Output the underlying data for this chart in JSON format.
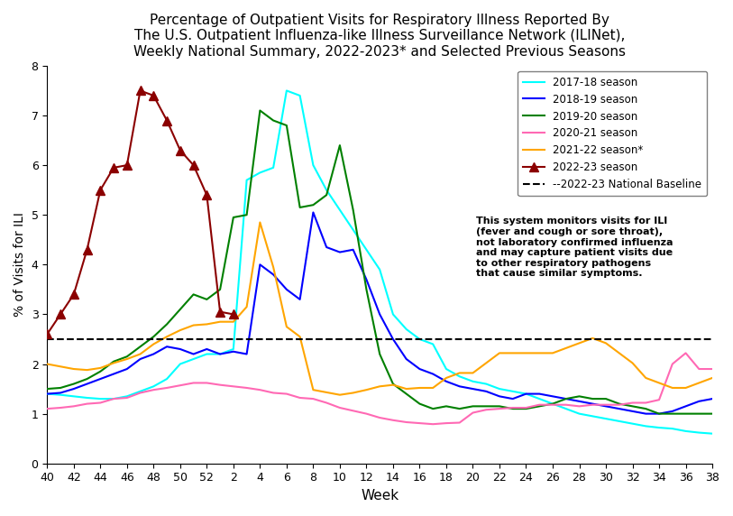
{
  "title": "Percentage of Outpatient Visits for Respiratory Illness Reported By\nThe U.S. Outpatient Influenza-like Illness Surveillance Network (ILINet),\nWeekly National Summary, 2022-2023* and Selected Previous Seasons",
  "xlabel": "Week",
  "ylabel": "% of Visits for ILI",
  "ylim": [
    0,
    8
  ],
  "yticks": [
    0,
    1,
    2,
    3,
    4,
    5,
    6,
    7,
    8
  ],
  "baseline": 2.5,
  "annotation_text": "This system monitors visits for ILI\n(fever and cough or sore throat),\nnot laboratory confirmed influenza\nand may capture patient visits due\nto other respiratory pathogens\nthat cause similar symptoms.",
  "x_tick_labels": [
    "40",
    "42",
    "44",
    "46",
    "48",
    "50",
    "52",
    "2",
    "4",
    "6",
    "8",
    "10",
    "12",
    "14",
    "16",
    "18",
    "20",
    "22",
    "24",
    "26",
    "28",
    "30",
    "32",
    "34",
    "36",
    "38"
  ],
  "seasons": {
    "2017-18 season": {
      "color": "cyan",
      "lw": 1.5,
      "marker": null,
      "linestyle": "solid",
      "x": [
        40,
        41,
        42,
        43,
        44,
        45,
        46,
        47,
        48,
        49,
        50,
        51,
        52,
        1,
        2,
        3,
        4,
        5,
        6,
        7,
        8,
        9,
        10,
        11,
        12,
        13,
        14,
        15,
        16,
        17,
        18,
        19,
        20,
        21,
        22,
        23,
        24,
        25,
        26,
        27,
        28,
        29,
        30,
        31,
        32,
        33,
        34,
        35,
        36,
        37,
        38
      ],
      "y": [
        1.4,
        1.38,
        1.35,
        1.32,
        1.3,
        1.3,
        1.35,
        1.45,
        1.55,
        1.7,
        2.0,
        2.1,
        2.2,
        2.2,
        2.3,
        5.7,
        5.85,
        5.95,
        7.5,
        7.4,
        6.0,
        5.5,
        5.1,
        4.7,
        4.3,
        3.9,
        3.0,
        2.7,
        2.5,
        2.4,
        1.9,
        1.75,
        1.65,
        1.6,
        1.5,
        1.45,
        1.4,
        1.3,
        1.2,
        1.1,
        1.0,
        0.95,
        0.9,
        0.85,
        0.8,
        0.75,
        0.72,
        0.7,
        0.65,
        0.62,
        0.6
      ]
    },
    "2018-19 season": {
      "color": "blue",
      "lw": 1.5,
      "marker": null,
      "linestyle": "solid",
      "x": [
        40,
        41,
        42,
        43,
        44,
        45,
        46,
        47,
        48,
        49,
        50,
        51,
        52,
        1,
        2,
        3,
        4,
        5,
        6,
        7,
        8,
        9,
        10,
        11,
        12,
        13,
        14,
        15,
        16,
        17,
        18,
        19,
        20,
        21,
        22,
        23,
        24,
        25,
        26,
        27,
        28,
        29,
        30,
        31,
        32,
        33,
        34,
        35,
        36,
        37,
        38
      ],
      "y": [
        1.4,
        1.42,
        1.5,
        1.6,
        1.7,
        1.8,
        1.9,
        2.1,
        2.2,
        2.35,
        2.3,
        2.2,
        2.3,
        2.2,
        2.25,
        2.2,
        4.0,
        3.8,
        3.5,
        3.3,
        5.05,
        4.35,
        4.25,
        4.3,
        3.7,
        3.0,
        2.5,
        2.1,
        1.9,
        1.8,
        1.65,
        1.55,
        1.5,
        1.45,
        1.35,
        1.3,
        1.4,
        1.4,
        1.35,
        1.3,
        1.25,
        1.2,
        1.15,
        1.1,
        1.05,
        1.0,
        1.0,
        1.05,
        1.15,
        1.25,
        1.3
      ]
    },
    "2019-20 season": {
      "color": "green",
      "lw": 1.5,
      "marker": null,
      "linestyle": "solid",
      "x": [
        40,
        41,
        42,
        43,
        44,
        45,
        46,
        47,
        48,
        49,
        50,
        51,
        52,
        1,
        2,
        3,
        4,
        5,
        6,
        7,
        8,
        9,
        10,
        11,
        12,
        13,
        14,
        15,
        16,
        17,
        18,
        19,
        20,
        21,
        22,
        23,
        24,
        25,
        26,
        27,
        28,
        29,
        30,
        31,
        32,
        33,
        34,
        35,
        36,
        37,
        38
      ],
      "y": [
        1.5,
        1.52,
        1.6,
        1.7,
        1.85,
        2.05,
        2.15,
        2.35,
        2.55,
        2.8,
        3.1,
        3.4,
        3.3,
        3.5,
        4.95,
        5.0,
        7.1,
        6.9,
        6.8,
        5.15,
        5.2,
        5.4,
        6.4,
        5.1,
        3.5,
        2.2,
        1.6,
        1.4,
        1.2,
        1.1,
        1.15,
        1.1,
        1.15,
        1.15,
        1.15,
        1.1,
        1.1,
        1.15,
        1.2,
        1.3,
        1.35,
        1.3,
        1.3,
        1.2,
        1.15,
        1.1,
        1.0,
        1.0,
        1.0,
        1.0,
        1.0
      ]
    },
    "2020-21 season": {
      "color": "#FF69B4",
      "lw": 1.5,
      "marker": null,
      "linestyle": "solid",
      "x": [
        40,
        41,
        42,
        43,
        44,
        45,
        46,
        47,
        48,
        49,
        50,
        51,
        52,
        1,
        2,
        3,
        4,
        5,
        6,
        7,
        8,
        9,
        10,
        11,
        12,
        13,
        14,
        15,
        16,
        17,
        18,
        19,
        20,
        21,
        22,
        23,
        24,
        25,
        26,
        27,
        28,
        29,
        30,
        31,
        32,
        33,
        34,
        35,
        36,
        37,
        38
      ],
      "y": [
        1.1,
        1.12,
        1.15,
        1.2,
        1.22,
        1.3,
        1.32,
        1.42,
        1.48,
        1.52,
        1.57,
        1.62,
        1.62,
        1.58,
        1.55,
        1.52,
        1.48,
        1.42,
        1.4,
        1.32,
        1.3,
        1.22,
        1.12,
        1.06,
        1.0,
        0.92,
        0.87,
        0.83,
        0.81,
        0.79,
        0.81,
        0.82,
        1.02,
        1.08,
        1.1,
        1.12,
        1.12,
        1.18,
        1.18,
        1.18,
        1.15,
        1.18,
        1.18,
        1.18,
        1.22,
        1.22,
        1.28,
        2.0,
        2.22,
        1.9,
        1.9
      ]
    },
    "2021-22 season*": {
      "color": "orange",
      "lw": 1.5,
      "marker": null,
      "linestyle": "solid",
      "x": [
        40,
        41,
        42,
        43,
        44,
        45,
        46,
        47,
        48,
        49,
        50,
        51,
        52,
        1,
        2,
        3,
        4,
        5,
        6,
        7,
        8,
        9,
        10,
        11,
        12,
        13,
        14,
        15,
        16,
        17,
        18,
        19,
        20,
        21,
        22,
        23,
        24,
        25,
        26,
        27,
        28,
        29,
        30,
        31,
        32,
        33,
        34,
        35,
        36,
        37,
        38
      ],
      "y": [
        2.0,
        1.95,
        1.9,
        1.88,
        1.92,
        2.02,
        2.1,
        2.2,
        2.4,
        2.55,
        2.68,
        2.78,
        2.8,
        2.85,
        2.85,
        3.15,
        4.85,
        3.95,
        2.75,
        2.55,
        1.48,
        1.43,
        1.38,
        1.42,
        1.48,
        1.55,
        1.58,
        1.5,
        1.52,
        1.52,
        1.72,
        1.82,
        1.82,
        2.02,
        2.22,
        2.22,
        2.22,
        2.22,
        2.22,
        2.32,
        2.42,
        2.52,
        2.42,
        2.22,
        2.02,
        1.72,
        1.62,
        1.52,
        1.52,
        1.62,
        1.72
      ]
    },
    "2022-23 season": {
      "color": "darkred",
      "lw": 1.5,
      "marker": "^",
      "markersize": 7,
      "linestyle": "solid",
      "x": [
        40,
        41,
        42,
        43,
        44,
        45,
        46,
        47,
        48,
        49,
        50,
        51,
        52,
        1,
        2
      ],
      "y": [
        2.6,
        3.0,
        3.4,
        4.3,
        5.5,
        5.95,
        6.0,
        7.5,
        7.4,
        6.9,
        6.3,
        6.0,
        5.4,
        3.05,
        3.0
      ]
    }
  }
}
